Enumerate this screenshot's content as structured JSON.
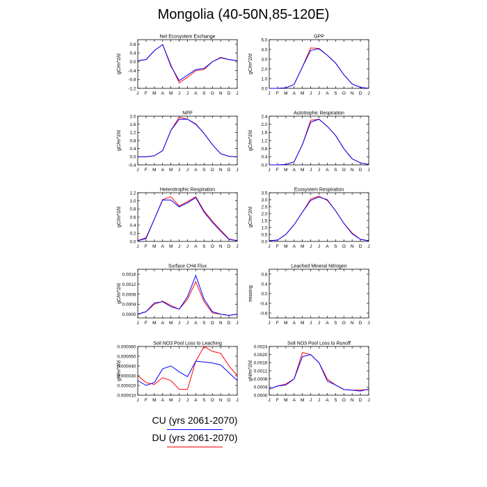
{
  "title": "Mongolia (40-50N,85-120E)",
  "months": [
    "J",
    "F",
    "M",
    "A",
    "M",
    "J",
    "J",
    "A",
    "S",
    "O",
    "N",
    "D",
    "J"
  ],
  "colors": {
    "cu": "#0000ff",
    "du": "#ff0000"
  },
  "legend": [
    {
      "label": "CU (yrs 2061-2070)",
      "color": "#0000ff"
    },
    {
      "label": "DU (yrs 2061-2070)",
      "color": "#ff0000"
    }
  ],
  "chart_data": [
    {
      "type": "line",
      "title": "Net Ecosystem Exchange",
      "ylabel": "gC/m^2/d",
      "ylim": [
        -1.2,
        1.0
      ],
      "yticks": [
        "0.8",
        "0.4",
        "0.0",
        "-0.4",
        "-0.8",
        "-1.2"
      ],
      "ytick_values": [
        0.8,
        0.4,
        0,
        -0.4,
        -0.8,
        -1.2
      ],
      "series": [
        {
          "name": "CU",
          "values": [
            0.05,
            0.1,
            0.5,
            0.78,
            -0.2,
            -0.85,
            -0.6,
            -0.35,
            -0.3,
            0.0,
            0.18,
            0.1,
            0.05
          ]
        },
        {
          "name": "DU",
          "values": [
            0.05,
            0.1,
            0.5,
            0.78,
            -0.15,
            -0.95,
            -0.7,
            -0.4,
            -0.35,
            0.0,
            0.2,
            0.1,
            0.05
          ]
        }
      ]
    },
    {
      "type": "line",
      "title": "GPP",
      "ylabel": "gC/m^2/d",
      "ylim": [
        0,
        5.0
      ],
      "yticks": [
        "5.0",
        "4.0",
        "3.0",
        "2.0",
        "1.0",
        "0.0"
      ],
      "ytick_values": [
        5,
        4,
        3,
        2,
        1,
        0
      ],
      "series": [
        {
          "name": "CU",
          "values": [
            0.0,
            0.0,
            0.05,
            0.4,
            2.2,
            3.9,
            4.05,
            3.4,
            2.6,
            1.4,
            0.45,
            0.1,
            0.0
          ]
        },
        {
          "name": "DU",
          "values": [
            0.0,
            0.0,
            0.05,
            0.4,
            2.2,
            4.15,
            4.1,
            3.4,
            2.6,
            1.4,
            0.45,
            0.1,
            0.0
          ]
        }
      ]
    },
    {
      "type": "line",
      "title": "NPP",
      "ylabel": "gC/m^2/d",
      "ylim": [
        -0.4,
        2.0
      ],
      "yticks": [
        "2.0",
        "1.6",
        "1.2",
        "0.8",
        "0.4",
        "0.0",
        "-0.4"
      ],
      "ytick_values": [
        2,
        1.6,
        1.2,
        0.8,
        0.4,
        0,
        -0.4
      ],
      "series": [
        {
          "name": "CU",
          "values": [
            0.0,
            0.0,
            0.05,
            0.3,
            1.3,
            1.85,
            1.85,
            1.6,
            1.15,
            0.6,
            0.15,
            0.02,
            0.0
          ]
        },
        {
          "name": "DU",
          "values": [
            0.0,
            0.0,
            0.05,
            0.3,
            1.3,
            1.95,
            1.85,
            1.62,
            1.15,
            0.6,
            0.15,
            0.02,
            0.0
          ]
        }
      ]
    },
    {
      "type": "line",
      "title": "Autotrophic Respiration",
      "ylabel": "gC/m^2/d",
      "ylim": [
        0,
        2.4
      ],
      "yticks": [
        "2.4",
        "2.0",
        "1.6",
        "1.2",
        "0.8",
        "0.4",
        "0.0"
      ],
      "ytick_values": [
        2.4,
        2,
        1.6,
        1.2,
        0.8,
        0.4,
        0
      ],
      "series": [
        {
          "name": "CU",
          "values": [
            0.0,
            0.0,
            0.02,
            0.15,
            1.0,
            2.1,
            2.25,
            1.9,
            1.45,
            0.8,
            0.3,
            0.1,
            0.02
          ]
        },
        {
          "name": "DU",
          "values": [
            0.0,
            0.0,
            0.02,
            0.15,
            1.0,
            2.2,
            2.25,
            1.9,
            1.45,
            0.8,
            0.3,
            0.1,
            0.02
          ]
        }
      ]
    },
    {
      "type": "line",
      "title": "Heterotrophic Respiration",
      "ylabel": "gC/m^2/d",
      "ylim": [
        0,
        1.2
      ],
      "yticks": [
        "1.2",
        "1.0",
        "0.8",
        "0.6",
        "0.4",
        "0.2",
        "0.0"
      ],
      "ytick_values": [
        1.2,
        1,
        0.8,
        0.6,
        0.4,
        0.2,
        0
      ],
      "series": [
        {
          "name": "CU",
          "values": [
            0.02,
            0.07,
            0.55,
            1.02,
            1.02,
            0.85,
            0.95,
            1.08,
            0.72,
            0.47,
            0.25,
            0.05,
            0.02
          ]
        },
        {
          "name": "DU",
          "values": [
            0.02,
            0.09,
            0.55,
            1.03,
            1.1,
            0.87,
            0.98,
            1.1,
            0.75,
            0.5,
            0.28,
            0.06,
            0.02
          ]
        }
      ]
    },
    {
      "type": "line",
      "title": "Ecosystem Respiration",
      "ylabel": "gC/m^2/d",
      "ylim": [
        0,
        3.5
      ],
      "yticks": [
        "3.5",
        "3.0",
        "2.5",
        "2.0",
        "1.5",
        "1.0",
        "0.5",
        "0.0"
      ],
      "ytick_values": [
        3.5,
        3,
        2.5,
        2,
        1.5,
        1,
        0.5,
        0
      ],
      "series": [
        {
          "name": "CU",
          "values": [
            0.05,
            0.1,
            0.5,
            1.2,
            2.1,
            2.95,
            3.2,
            3.0,
            2.2,
            1.3,
            0.55,
            0.15,
            0.05
          ]
        },
        {
          "name": "DU",
          "values": [
            0.05,
            0.1,
            0.5,
            1.2,
            2.1,
            3.05,
            3.25,
            2.95,
            2.2,
            1.3,
            0.6,
            0.15,
            0.05
          ]
        }
      ]
    },
    {
      "type": "line",
      "title": "Surface CH4 Flux",
      "ylabel": "gC/m^2/d",
      "ylim": [
        -0.00015,
        0.0018
      ],
      "yticks": [
        "0.0016",
        "0.0012",
        "0.0008",
        "0.0004",
        "0.0000"
      ],
      "ytick_values": [
        0.0016,
        0.0012,
        0.0008,
        0.0004,
        0
      ],
      "series": [
        {
          "name": "CU",
          "values": [
            0.0,
            0.0001,
            0.00045,
            0.0005,
            0.0003,
            0.0002,
            0.0007,
            0.00155,
            0.0006,
            0.0001,
            0.0,
            -5e-05,
            0.0
          ]
        },
        {
          "name": "DU",
          "values": [
            0.0,
            0.0001,
            0.0004,
            0.00052,
            0.00035,
            0.0002,
            0.0006,
            0.0013,
            0.0005,
            5e-05,
            0.0,
            -5e-05,
            0.0
          ]
        }
      ]
    },
    {
      "type": "line",
      "title": "Leached Mineral Nitrogen",
      "ylabel": "missing",
      "ylim": [
        -1.0,
        1.0
      ],
      "yticks": [
        "0.8",
        "0.4",
        "0.0",
        "-0.4",
        "-0.8"
      ],
      "ytick_values": [
        0.8,
        0.4,
        0,
        -0.4,
        -0.8
      ],
      "series": []
    },
    {
      "type": "line",
      "title": "Soil NO3 Pool Loss to Leaching",
      "ylabel": "gN/m^2/d",
      "ylim": [
        1e-05,
        6e-05
      ],
      "yticks": [
        "0.000060",
        "0.000050",
        "0.000040",
        "0.000030",
        "0.000020",
        "0.000010"
      ],
      "ytick_values": [
        6e-05,
        5e-05,
        4e-05,
        3e-05,
        2e-05,
        1e-05
      ],
      "series": [
        {
          "name": "CU",
          "values": [
            2.5e-05,
            2e-05,
            2.3e-05,
            3.7e-05,
            4e-05,
            3.4e-05,
            2.9e-05,
            4.5e-05,
            4.4e-05,
            4.3e-05,
            4.1e-05,
            3.3e-05,
            2.5e-05
          ]
        },
        {
          "name": "DU",
          "values": [
            3e-05,
            2.3e-05,
            2.1e-05,
            2.8e-05,
            2.5e-05,
            1.6e-05,
            1.6e-05,
            4.5e-05,
            6e-05,
            5.5e-05,
            5.3e-05,
            4e-05,
            3e-05
          ]
        }
      ]
    },
    {
      "type": "line",
      "title": "Soil NO3 Pool Loss to Runoff",
      "ylabel": "gN/m^2/d",
      "ylim": [
        0,
        0.0024
      ],
      "yticks": [
        "0.0024",
        "0.0020",
        "0.0016",
        "0.0012",
        "0.0008",
        "0.0004",
        "0.0000"
      ],
      "ytick_values": [
        0.0024,
        0.002,
        0.0016,
        0.0012,
        0.0008,
        0.0004,
        0
      ],
      "series": [
        {
          "name": "CU",
          "values": [
            0.0003,
            0.00045,
            0.0005,
            0.0008,
            0.0019,
            0.002,
            0.0016,
            0.0007,
            0.0005,
            0.00028,
            0.00025,
            0.0002,
            0.0003
          ]
        },
        {
          "name": "DU",
          "values": [
            0.0003,
            0.00045,
            0.00055,
            0.0008,
            0.0021,
            0.002,
            0.0016,
            0.0008,
            0.0005,
            0.00028,
            0.00025,
            0.00025,
            0.00028
          ]
        }
      ]
    }
  ]
}
